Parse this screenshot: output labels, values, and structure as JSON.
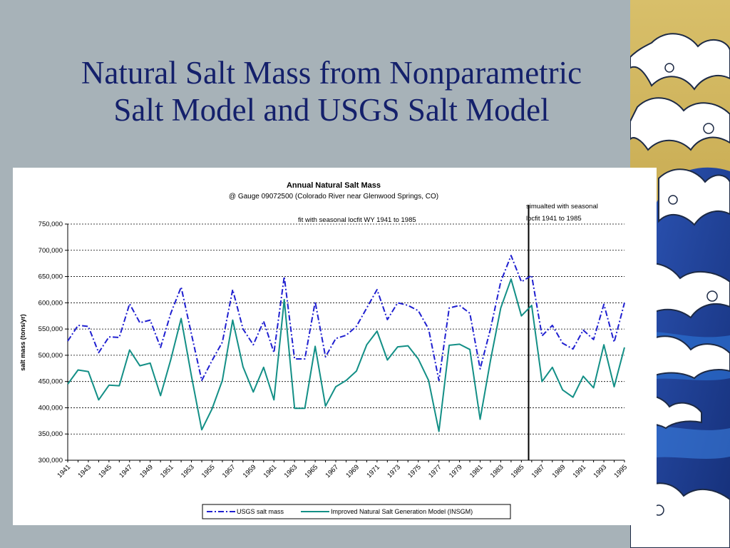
{
  "slide": {
    "title_line1": "Natural Salt Mass from Nonparametric",
    "title_line2": "Salt Model and USGS Salt Model"
  },
  "colors": {
    "background": "#a7b2b8",
    "title": "#14206b",
    "usgs": "#1f1fd0",
    "insgm": "#138f86",
    "wave_blue": "#1c3f9a",
    "wave_gold": "#c9a640"
  },
  "chart_data": {
    "type": "line",
    "title": "Annual Natural Salt Mass",
    "subtitle": "@ Gauge 09072500 (Colorado River near Glenwood Springs, CO)",
    "annotations": {
      "fit": "fit with seasonal locfit WY 1941 to 1985",
      "sim_line1": "simualted with seasonal",
      "sim_line2": "locfit 1941 to 1985",
      "divider_year": 1985.7
    },
    "ylabel": "salt mass (tons/yr)",
    "xlabel": "",
    "ylim": [
      300000,
      750000
    ],
    "yticks": [
      "300,000",
      "350,000",
      "400,000",
      "450,000",
      "500,000",
      "550,000",
      "600,000",
      "650,000",
      "700,000",
      "750,000"
    ],
    "xticks": [
      "1941",
      "1943",
      "1945",
      "1947",
      "1949",
      "1951",
      "1953",
      "1955",
      "1957",
      "1959",
      "1961",
      "1963",
      "1965",
      "1967",
      "1969",
      "1971",
      "1973",
      "1975",
      "1977",
      "1979",
      "1981",
      "1983",
      "1985",
      "1987",
      "1989",
      "1991",
      "1993",
      "1995"
    ],
    "grid": "horizontal dashed",
    "legend_position": "bottom",
    "x": [
      1941,
      1942,
      1943,
      1944,
      1945,
      1946,
      1947,
      1948,
      1949,
      1950,
      1951,
      1952,
      1953,
      1954,
      1955,
      1956,
      1957,
      1958,
      1959,
      1960,
      1961,
      1962,
      1963,
      1964,
      1965,
      1966,
      1967,
      1968,
      1969,
      1970,
      1971,
      1972,
      1973,
      1974,
      1975,
      1976,
      1977,
      1978,
      1979,
      1980,
      1981,
      1982,
      1983,
      1984,
      1985,
      1986,
      1987,
      1988,
      1989,
      1990,
      1991,
      1992,
      1993,
      1994,
      1995
    ],
    "series": [
      {
        "name": "USGS salt mass",
        "values": [
          527000,
          557000,
          555000,
          505000,
          535000,
          534000,
          598000,
          562000,
          567000,
          515000,
          580000,
          630000,
          540000,
          452000,
          490000,
          525000,
          625000,
          550000,
          520000,
          565000,
          505000,
          650000,
          493000,
          493000,
          602000,
          497000,
          532000,
          538000,
          555000,
          590000,
          625000,
          568000,
          600000,
          595000,
          585000,
          550000,
          452000,
          590000,
          595000,
          580000,
          474000,
          550000,
          640000,
          690000,
          640000,
          652000,
          537000,
          557000,
          523000,
          512000,
          548000,
          530000,
          597000,
          525000,
          600000
        ]
      },
      {
        "name": "Improved Natural Salt Generation Model (INSGM)",
        "values": [
          445000,
          472000,
          469000,
          415000,
          443000,
          442000,
          510000,
          480000,
          485000,
          423000,
          492000,
          570000,
          460000,
          358000,
          398000,
          452000,
          567000,
          478000,
          430000,
          477000,
          415000,
          606000,
          399000,
          399000,
          517000,
          403000,
          440000,
          452000,
          470000,
          520000,
          546000,
          491000,
          516000,
          518000,
          493000,
          452000,
          355000,
          519000,
          521000,
          511000,
          378000,
          490000,
          590000,
          645000,
          575000,
          595000,
          450000,
          477000,
          434000,
          420000,
          460000,
          438000,
          520000,
          440000,
          515000
        ]
      }
    ]
  }
}
